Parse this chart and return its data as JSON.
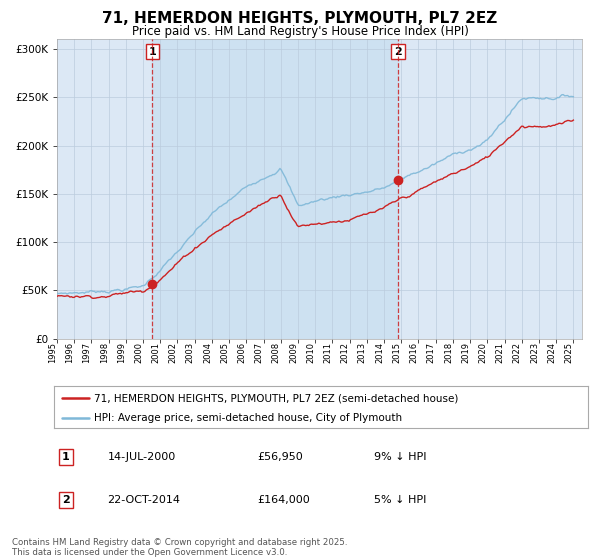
{
  "title": "71, HEMERDON HEIGHTS, PLYMOUTH, PL7 2EZ",
  "subtitle": "Price paid vs. HM Land Registry's House Price Index (HPI)",
  "title_fontsize": 11,
  "subtitle_fontsize": 9,
  "background_color": "#ffffff",
  "plot_bg_color": "#dce8f5",
  "year_start": 1995,
  "year_end": 2025,
  "ylim": [
    0,
    310000
  ],
  "yticks": [
    0,
    50000,
    100000,
    150000,
    200000,
    250000,
    300000
  ],
  "ytick_labels": [
    "£0",
    "£50K",
    "£100K",
    "£150K",
    "£200K",
    "£250K",
    "£300K"
  ],
  "hpi_color": "#7fb8d8",
  "price_color": "#cc2222",
  "vline_color": "#cc2222",
  "marker1_year": 2000.54,
  "marker1_price": 56950,
  "marker2_year": 2014.81,
  "marker2_price": 164000,
  "marker1_label": "1",
  "marker2_label": "2",
  "annotation1_date": "14-JUL-2000",
  "annotation1_price": "£56,950",
  "annotation1_hpi": "9% ↓ HPI",
  "annotation2_date": "22-OCT-2014",
  "annotation2_price": "£164,000",
  "annotation2_hpi": "5% ↓ HPI",
  "legend1_label": "71, HEMERDON HEIGHTS, PLYMOUTH, PL7 2EZ (semi-detached house)",
  "legend2_label": "HPI: Average price, semi-detached house, City of Plymouth",
  "footer": "Contains HM Land Registry data © Crown copyright and database right 2025.\nThis data is licensed under the Open Government Licence v3.0.",
  "grid_color": "#bbccdd"
}
